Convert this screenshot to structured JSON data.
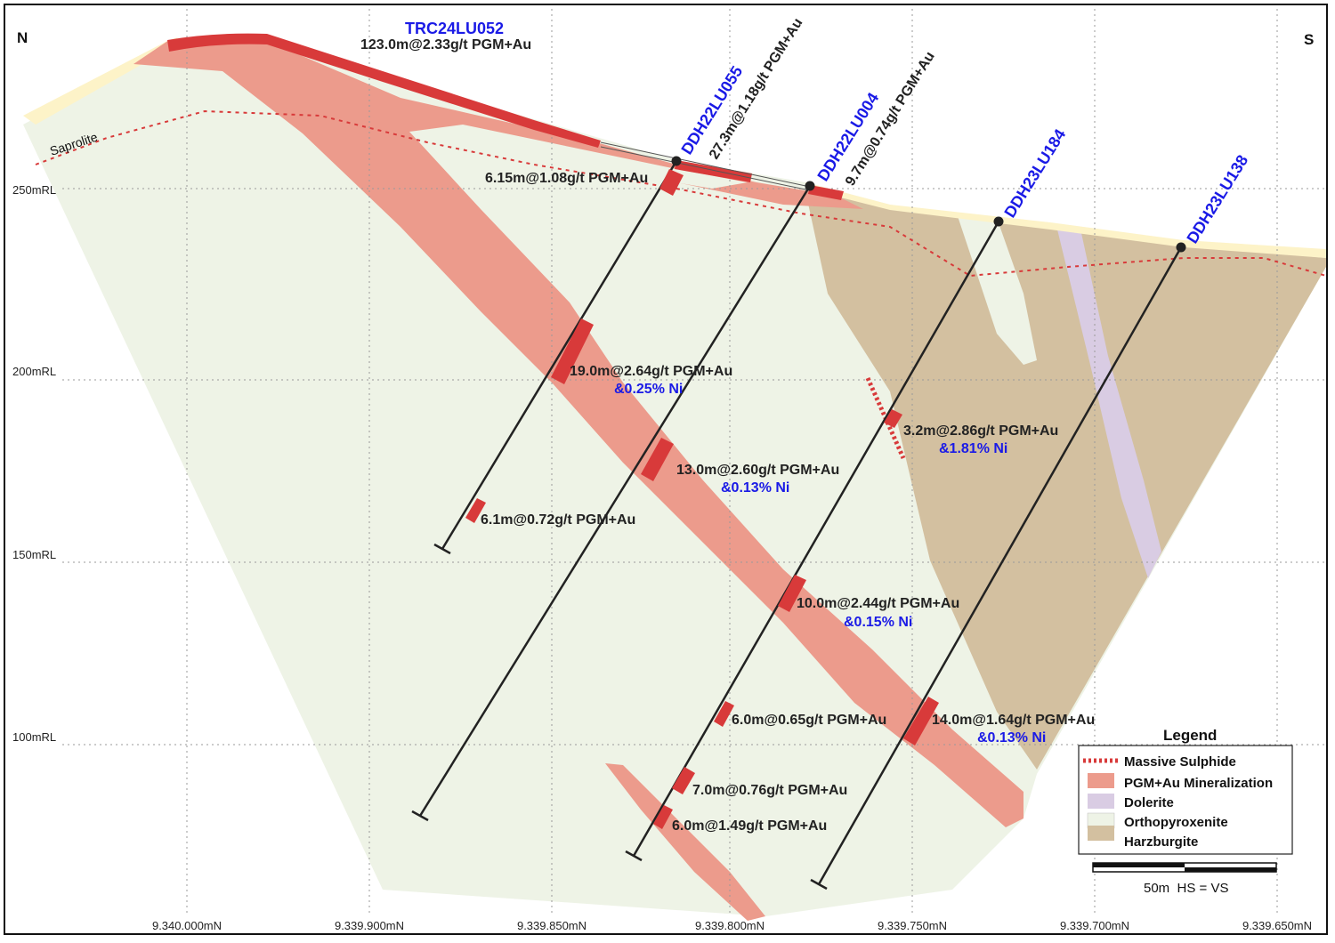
{
  "directions": {
    "north": "N",
    "south": "S"
  },
  "saprolite_label": "Saprolite",
  "elevation_labels": [
    "250mRL",
    "200mRL",
    "150mRL",
    "100mRL"
  ],
  "northing_labels": [
    "9.340.000mN",
    "9.339.900mN",
    "9.339.850mN",
    "9.339.800mN",
    "9.339.750mN",
    "9.339.700mN",
    "9.339.650mN"
  ],
  "holes": {
    "trc": {
      "name": "TRC24LU052",
      "headline": "123.0m@2.33g/t PGM+Au"
    },
    "h055": {
      "name": "DDH22LU055",
      "headline": "27.3m@1.18g/t PGM+Au"
    },
    "h004": {
      "name": "DDH22LU004",
      "headline": "9.7m@0.74g/t PGM+Au"
    },
    "h184": {
      "name": "DDH23LU184"
    },
    "h138": {
      "name": "DDH23LU138"
    }
  },
  "intercepts": {
    "i1": {
      "text": "6.15m@1.08g/t PGM+Au"
    },
    "i2": {
      "text": "19.0m@2.64g/t PGM+Au",
      "ni": "&0.25% Ni"
    },
    "i3": {
      "text": "13.0m@2.60g/t PGM+Au",
      "ni": "&0.13% Ni"
    },
    "i4": {
      "text": "6.1m@0.72g/t PGM+Au"
    },
    "i5": {
      "text": "3.2m@2.86g/t PGM+Au",
      "ni": "&1.81% Ni"
    },
    "i6": {
      "text": "10.0m@2.44g/t PGM+Au",
      "ni": "&0.15% Ni"
    },
    "i7": {
      "text": "6.0m@0.65g/t PGM+Au"
    },
    "i8": {
      "text": "14.0m@1.64g/t PGM+Au",
      "ni": "&0.13% Ni"
    },
    "i9": {
      "text": "7.0m@0.76g/t PGM+Au"
    },
    "i10": {
      "text": "6.0m@1.49g/t PGM+Au"
    }
  },
  "legend": {
    "title": "Legend",
    "items": [
      "Massive Sulphide",
      "PGM+Au Mineralization",
      "Dolerite",
      "Orthopyroxenite",
      "Harzburgite"
    ]
  },
  "scale_bar": {
    "label": "50m  HS = VS"
  },
  "colors": {
    "orthopyroxenite": "#eef3e6",
    "harzburgite": "#d3c0a0",
    "dolerite": "#d9cce3",
    "mineralization": "#ec9b8c",
    "high_grade": "#d83a3a",
    "topsoil": "#fdf6d6",
    "hole_names": "#1a1ae6"
  }
}
